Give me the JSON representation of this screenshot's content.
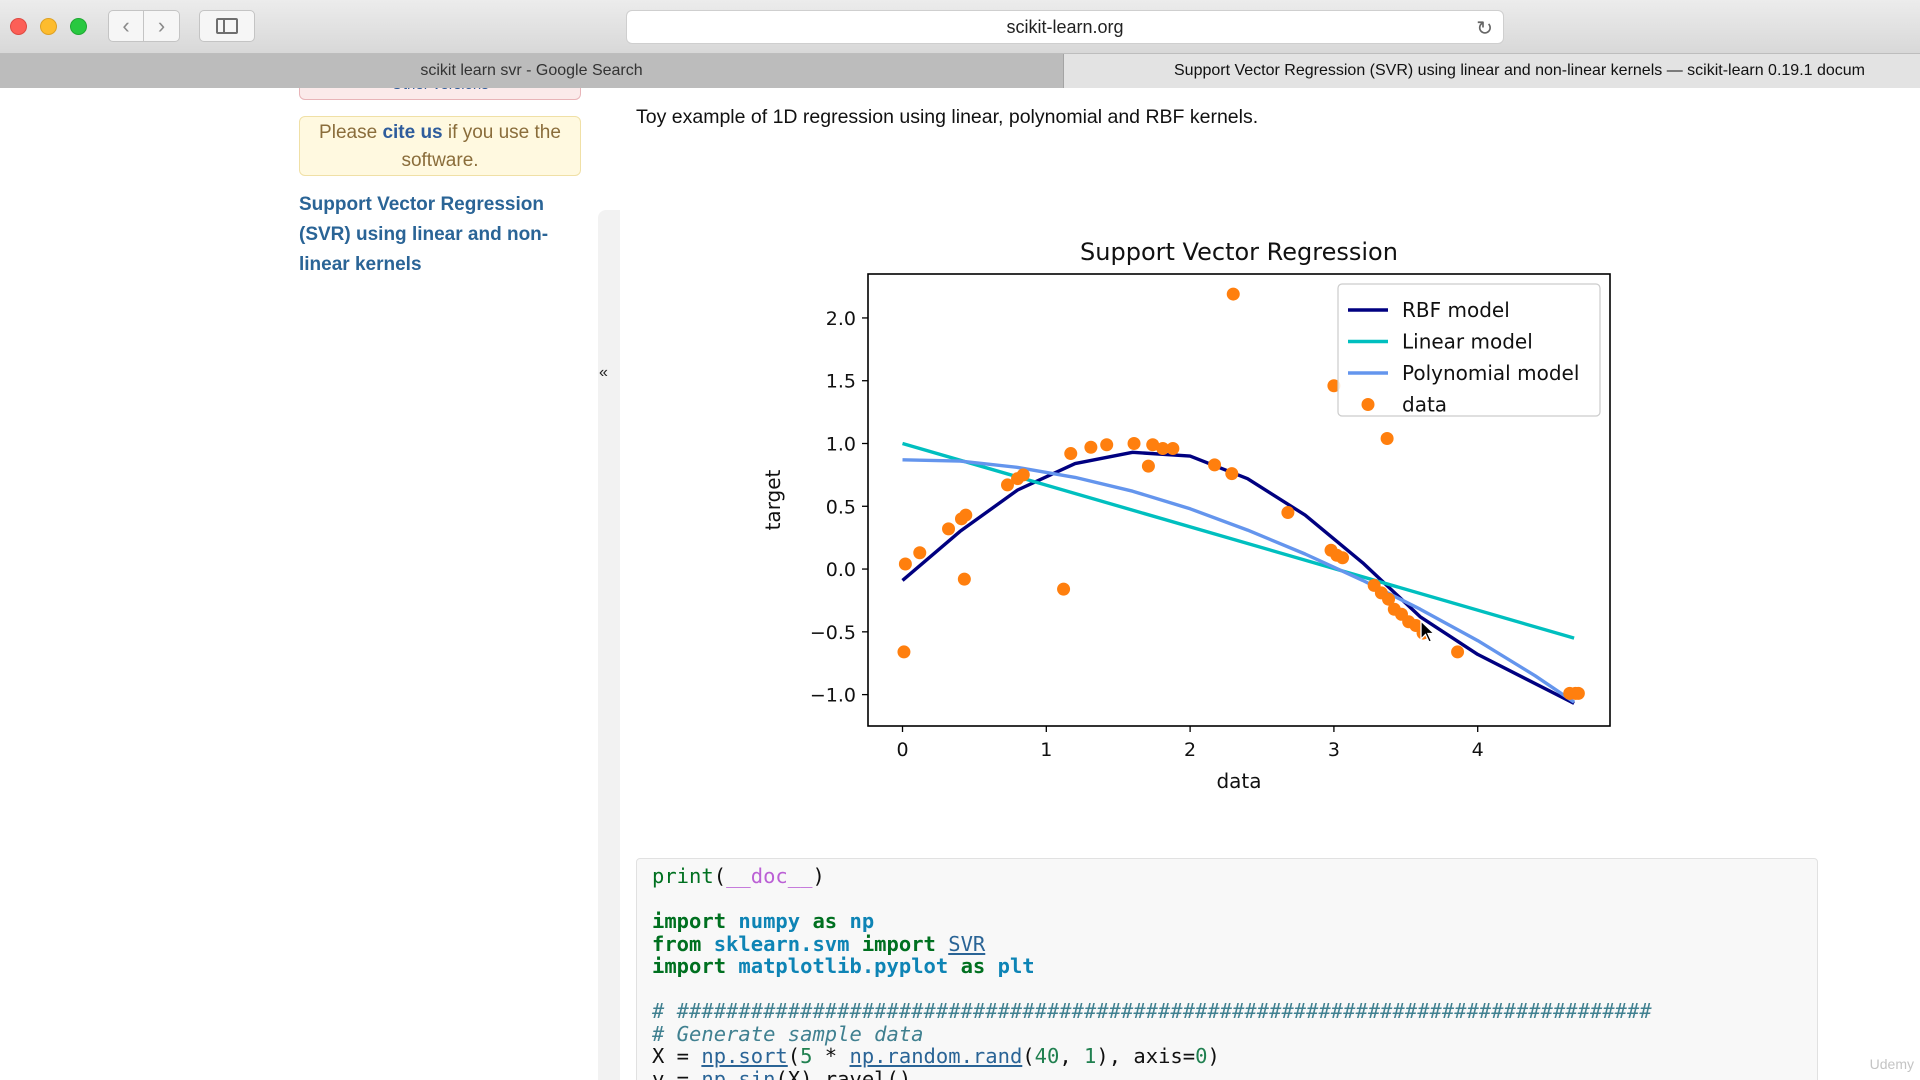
{
  "browser": {
    "url": "scikit-learn.org",
    "tabs": [
      {
        "label": "scikit learn svr - Google Search",
        "active": false
      },
      {
        "label": "Support Vector Regression (SVR) using linear and non-linear kernels — scikit-learn 0.19.1 docum",
        "active": true
      }
    ]
  },
  "sidebar": {
    "other_versions": "Other versions",
    "cite_pre": "Please",
    "cite_link": "cite us",
    "cite_post": "if you use the software.",
    "page_link": "Support Vector Regression (SVR) using linear and non-linear kernels",
    "collapse": "«"
  },
  "content": {
    "intro": "Toy example of 1D regression using linear, polynomial and RBF kernels."
  },
  "chart_data": {
    "type": "scatter",
    "title": "Support Vector Regression",
    "xlabel": "data",
    "ylabel": "target",
    "xlim": [
      -0.24,
      4.92
    ],
    "ylim": [
      -1.25,
      2.35
    ],
    "xticks": [
      0,
      1,
      2,
      3,
      4
    ],
    "yticks": [
      -1.0,
      -0.5,
      0.0,
      0.5,
      1.0,
      1.5,
      2.0
    ],
    "ytick_labels": [
      "−1.0",
      "−0.5",
      "0.0",
      "0.5",
      "1.0",
      "1.5",
      "2.0"
    ],
    "legend_position": "upper-right",
    "series": [
      {
        "name": "RBF model",
        "kind": "line",
        "color": "#000080",
        "x": [
          0,
          0.4,
          0.8,
          1.2,
          1.6,
          2.0,
          2.4,
          2.8,
          3.2,
          3.6,
          4.0,
          4.67
        ],
        "y": [
          -0.09,
          0.3,
          0.63,
          0.84,
          0.93,
          0.9,
          0.72,
          0.43,
          0.05,
          -0.38,
          -0.68,
          -1.07
        ]
      },
      {
        "name": "Linear model",
        "kind": "line",
        "color": "#00bfbf",
        "x": [
          0,
          4.67
        ],
        "y": [
          1.0,
          -0.55
        ]
      },
      {
        "name": "Polynomial model",
        "kind": "line",
        "color": "#6495ed",
        "x": [
          0,
          0.4,
          0.8,
          1.2,
          1.6,
          2.0,
          2.4,
          2.8,
          3.2,
          3.6,
          4.0,
          4.4,
          4.67
        ],
        "y": [
          0.87,
          0.86,
          0.81,
          0.73,
          0.62,
          0.48,
          0.31,
          0.12,
          -0.09,
          -0.32,
          -0.57,
          -0.85,
          -1.06
        ]
      },
      {
        "name": "data",
        "kind": "scatter",
        "color": "#ff7f0e",
        "x": [
          0.01,
          0.02,
          0.12,
          0.32,
          0.41,
          0.44,
          0.43,
          0.73,
          0.8,
          0.84,
          1.12,
          1.17,
          1.31,
          1.42,
          1.61,
          1.71,
          1.74,
          1.81,
          1.88,
          2.17,
          2.29,
          2.3,
          2.68,
          2.98,
          3.02,
          3.06,
          3.28,
          3.33,
          3.38,
          3.42,
          3.47,
          3.52,
          3.57,
          3.62,
          3.37,
          3.0,
          3.86,
          4.64,
          4.68,
          4.7
        ],
        "y": [
          -0.66,
          0.04,
          0.13,
          0.32,
          0.4,
          0.43,
          -0.08,
          0.67,
          0.72,
          0.75,
          -0.16,
          0.92,
          0.97,
          0.99,
          1.0,
          0.82,
          0.99,
          0.96,
          0.96,
          0.83,
          0.76,
          2.19,
          0.45,
          0.15,
          0.11,
          0.09,
          -0.13,
          -0.19,
          -0.24,
          -0.32,
          -0.36,
          -0.42,
          -0.45,
          -0.51,
          1.04,
          1.46,
          -0.66,
          -0.99,
          -0.99,
          -0.99
        ]
      }
    ]
  },
  "code": [
    "print(__doc__)",
    "",
    "import numpy as np",
    "from sklearn.svm import SVR",
    "import matplotlib.pyplot as plt",
    "",
    "# ###############################################################################",
    "# Generate sample data",
    "X = np.sort(5 * np.random.rand(40, 1), axis=0)",
    "y = np.sin(X).ravel()"
  ],
  "watermark": "Udemy"
}
